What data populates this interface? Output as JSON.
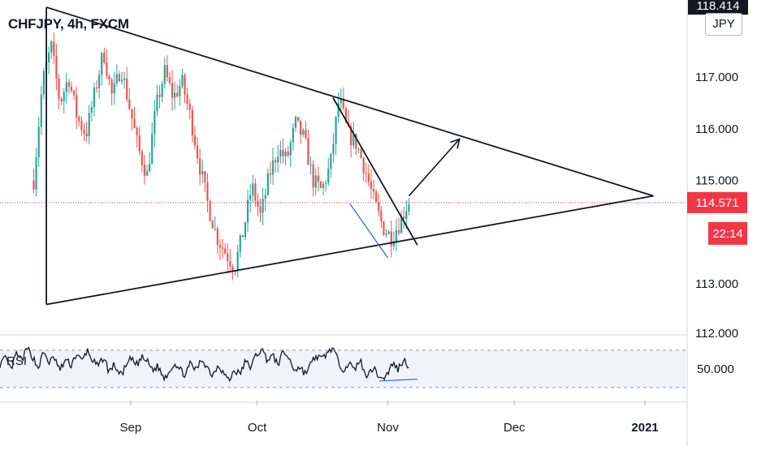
{
  "header": {
    "symbol_title": "CHFJPY, 4h, FXCM",
    "currency_label": "JPY",
    "top_price_label": "118.414"
  },
  "rsi_panel": {
    "label": "RSI",
    "level_label": "50.000"
  },
  "chart_data": [
    {
      "type": "candlestick",
      "title": "CHFJPY, 4h, FXCM",
      "y_ticks": [
        "117.000",
        "116.000",
        "115.000",
        "113.000",
        "112.000"
      ],
      "ylim": [
        112.0,
        118.5
      ],
      "x_ticks": [
        "Sep",
        "Oct",
        "Nov",
        "Dec",
        "2021"
      ],
      "x_tick_dates": [
        "2020-09-01",
        "2020-10-01",
        "2020-11-01",
        "2020-12-01",
        "2021-01-01"
      ],
      "xlim": [
        "2020-08-01",
        "2021-01-11"
      ],
      "current_price": 114.571,
      "current_price_label": "114.571",
      "countdown_label": "22:14",
      "colors": {
        "up": "#26a69a",
        "down": "#ef5350",
        "price_line": "#f23645"
      },
      "series": {
        "x_start": "2020-08-09",
        "x_end": "2020-11-06",
        "points": [
          [
            2020,
            115.0
          ],
          [
            2020,
            116.9
          ],
          [
            2020,
            117.6
          ],
          [
            2020,
            116.5
          ],
          [
            2020,
            117.0
          ],
          [
            2020,
            116.2
          ],
          [
            2020,
            115.9
          ],
          [
            2020,
            116.7
          ],
          [
            2020,
            117.5
          ],
          [
            2020,
            116.6
          ],
          [
            2020,
            117.2
          ],
          [
            2020,
            116.4
          ],
          [
            2020,
            115.6
          ],
          [
            2020,
            115.1
          ],
          [
            2020,
            116.4
          ],
          [
            2020,
            117.1
          ],
          [
            2020,
            116.6
          ],
          [
            2020,
            116.9
          ],
          [
            2020,
            116.2
          ],
          [
            2020,
            115.3
          ],
          [
            2020,
            114.5
          ],
          [
            2020,
            113.9
          ],
          [
            2020,
            113.6
          ],
          [
            2020,
            113.3
          ],
          [
            2020,
            114.0
          ],
          [
            2020,
            114.9
          ],
          [
            2020,
            114.3
          ],
          [
            2020,
            115.1
          ],
          [
            2020,
            115.6
          ],
          [
            2020,
            115.4
          ],
          [
            2020,
            116.1
          ],
          [
            2020,
            115.8
          ],
          [
            2020,
            115.0
          ],
          [
            2020,
            114.8
          ],
          [
            2020,
            115.3
          ],
          [
            2020,
            116.6
          ],
          [
            2020,
            115.9
          ],
          [
            2020,
            115.7
          ],
          [
            2020,
            115.2
          ],
          [
            2020,
            114.6
          ],
          [
            2020,
            114.1
          ],
          [
            2020,
            113.9
          ],
          [
            2020,
            114.2
          ],
          [
            2020,
            114.6
          ]
        ]
      },
      "drawings": [
        {
          "type": "trendline",
          "points": [
            [
              "2020-08-12",
              118.35
            ],
            [
              "2021-01-03",
              114.7
            ]
          ]
        },
        {
          "type": "trendline",
          "points": [
            [
              "2020-08-12",
              118.35
            ],
            [
              "2020-08-12",
              112.6
            ]
          ]
        },
        {
          "type": "trendline",
          "points": [
            [
              "2020-08-12",
              112.6
            ],
            [
              "2021-01-03",
              114.7
            ]
          ]
        },
        {
          "type": "trendline",
          "points": [
            [
              "2020-10-19",
              116.6
            ],
            [
              "2020-11-08",
              113.75
            ]
          ]
        },
        {
          "type": "trendline",
          "points": [
            [
              "2020-10-23",
              114.55
            ],
            [
              "2020-11-01",
              113.5
            ]
          ]
        },
        {
          "type": "arrow",
          "points": [
            [
              "2020-11-06",
              114.7
            ],
            [
              "2020-11-18",
              115.8
            ]
          ]
        }
      ]
    },
    {
      "type": "line",
      "title": "RSI",
      "ylim": [
        20,
        80
      ],
      "y_ticks": [
        "50.000"
      ],
      "bands": [
        70,
        30
      ],
      "series": [
        {
          "name": "RSI",
          "x_start": "2020-08-01",
          "x_end": "2020-11-06",
          "values": [
            55,
            61,
            49,
            66,
            59,
            72,
            63,
            51,
            68,
            57,
            62,
            48,
            60,
            54,
            66,
            58,
            70,
            59,
            52,
            63,
            47,
            55,
            43,
            51,
            61,
            54,
            62,
            58,
            49,
            53,
            40,
            47,
            57,
            49,
            44,
            56,
            48,
            61,
            52,
            43,
            55,
            46,
            37,
            49,
            44,
            58,
            52,
            65,
            71,
            60,
            64,
            55,
            69,
            61,
            49,
            52,
            45,
            55,
            64,
            60,
            67,
            73,
            58,
            50,
            56,
            48,
            61,
            42,
            51,
            47,
            39,
            44,
            56,
            50,
            60,
            53
          ]
        }
      ],
      "drawings": [
        {
          "type": "trendline",
          "points": [
            [
              "2020-10-30",
              37
            ],
            [
              "2020-11-08",
              39
            ]
          ]
        }
      ]
    }
  ]
}
